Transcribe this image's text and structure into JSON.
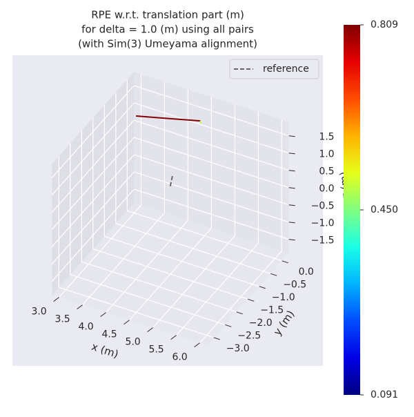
{
  "chart_data": {
    "type": "line3d",
    "title": [
      "RPE w.r.t. translation part (m)",
      "for delta = 1.0 (m) using all pairs",
      "(with Sim(3) Umeyama alignment)"
    ],
    "x_label": "x (m)",
    "y_label": "y (m)",
    "z_label": "z (m)",
    "xlim": [
      2.85,
      6.15
    ],
    "ylim": [
      -3.3,
      0.3
    ],
    "zlim": [
      -1.9,
      1.9
    ],
    "xticks": [
      {
        "value": 3,
        "label": "3.0"
      },
      3.5,
      {
        "value": 4,
        "label": "4.0"
      },
      4.5,
      {
        "value": 5,
        "label": "5.0"
      },
      5.5,
      {
        "value": 6,
        "label": "6.0"
      }
    ],
    "yticks": [
      {
        "value": 0,
        "label": "0.0"
      },
      {
        "value": -0.5,
        "label": "−0.5"
      },
      {
        "value": -1,
        "label": "−1.0"
      },
      {
        "value": -1.5,
        "label": "−1.5"
      },
      {
        "value": -2,
        "label": "−2.0"
      },
      {
        "value": -2.5,
        "label": "−2.5"
      },
      {
        "value": -3,
        "label": "−3.0"
      }
    ],
    "zticks": [
      {
        "value": -1.5,
        "label": "−1.5"
      },
      {
        "value": -1,
        "label": "−1.0"
      },
      {
        "value": -0.5,
        "label": "−0.5"
      },
      {
        "value": 0,
        "label": "0.0"
      },
      0.5,
      {
        "value": 1,
        "label": "1.0"
      },
      1.5
    ],
    "grid": true,
    "trajectory": {
      "x": [
        3.0,
        4.37,
        4.4
      ],
      "y": [
        0.08,
        0.08,
        0.06
      ],
      "z": [
        0.85,
        1.31,
        1.27
      ],
      "error": [
        0.809,
        0.5,
        0.5
      ]
    },
    "reference": {
      "name": "reference",
      "color": "#666666",
      "dashed": true,
      "x": [
        4.3,
        4.3
      ],
      "y": [
        -1.0,
        -1.1
      ],
      "z": [
        0.48,
        0.25
      ]
    },
    "legend_loc": "upper right",
    "colorbar": {
      "cmap": "jet",
      "clim": [
        0.091,
        0.809
      ],
      "ticks": [
        0.091,
        {
          "value": 0.45,
          "label": "0.450"
        },
        0.809
      ]
    }
  }
}
